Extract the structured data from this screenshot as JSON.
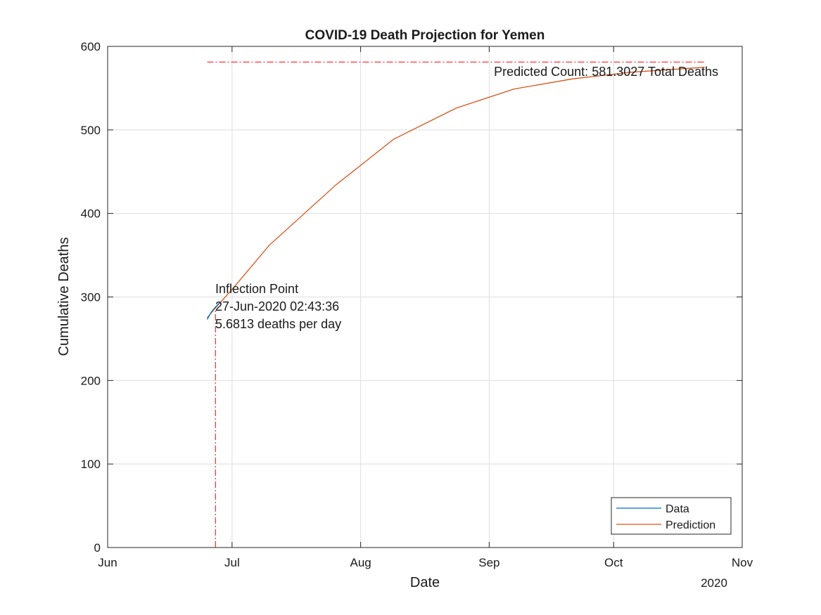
{
  "chart_data": {
    "type": "line",
    "title": "COVID-19 Death Projection for Yemen",
    "xlabel": "Date",
    "ylabel": "Cumulative Deaths",
    "x_tick_labels": [
      "Jun",
      "Jul",
      "Aug",
      "Sep",
      "Oct",
      "Nov"
    ],
    "x_ticks": [
      "2020-06-01",
      "2020-07-01",
      "2020-08-01",
      "2020-09-01",
      "2020-10-01",
      "2020-11-01"
    ],
    "x_year_label": "2020",
    "xlim": [
      "2020-06-01",
      "2020-11-01"
    ],
    "ylim": [
      0,
      600
    ],
    "y_ticks": [
      0,
      100,
      200,
      300,
      400,
      500,
      600
    ],
    "grid": true,
    "legend_position": "bottom-right",
    "series": [
      {
        "name": "Data",
        "color": "#0072BD",
        "points": [
          {
            "x": "2020-06-25",
            "y": 273
          },
          {
            "x": "2020-06-26",
            "y": 282
          },
          {
            "x": "2020-06-27",
            "y": 288
          },
          {
            "x": "2020-06-28",
            "y": 293
          }
        ]
      },
      {
        "name": "Prediction",
        "color": "#D95319",
        "points": [
          {
            "x": "2020-06-25",
            "y": 275
          },
          {
            "x": "2020-06-27",
            "y": 287
          },
          {
            "x": "2020-07-01",
            "y": 309
          },
          {
            "x": "2020-07-10",
            "y": 362
          },
          {
            "x": "2020-07-26",
            "y": 434
          },
          {
            "x": "2020-08-09",
            "y": 489
          },
          {
            "x": "2020-08-24",
            "y": 526
          },
          {
            "x": "2020-09-07",
            "y": 549
          },
          {
            "x": "2020-09-21",
            "y": 561
          },
          {
            "x": "2020-10-05",
            "y": 569
          },
          {
            "x": "2020-10-23",
            "y": 575
          }
        ]
      }
    ],
    "reference_lines": {
      "horizontal": {
        "y": 581.3027,
        "x_start": "2020-06-25",
        "x_end": "2020-10-23",
        "color": "#FF0000"
      },
      "vertical": {
        "x": "2020-06-27",
        "y_start": 0,
        "y_end": 287,
        "color": "#FF0000"
      }
    },
    "annotations": {
      "predicted": "Predicted Count: 581.3027 Total Deaths",
      "inflection_title": "Inflection Point",
      "inflection_time": "27-Jun-2020 02:43:36",
      "inflection_rate": "5.6813 deaths per day"
    }
  }
}
